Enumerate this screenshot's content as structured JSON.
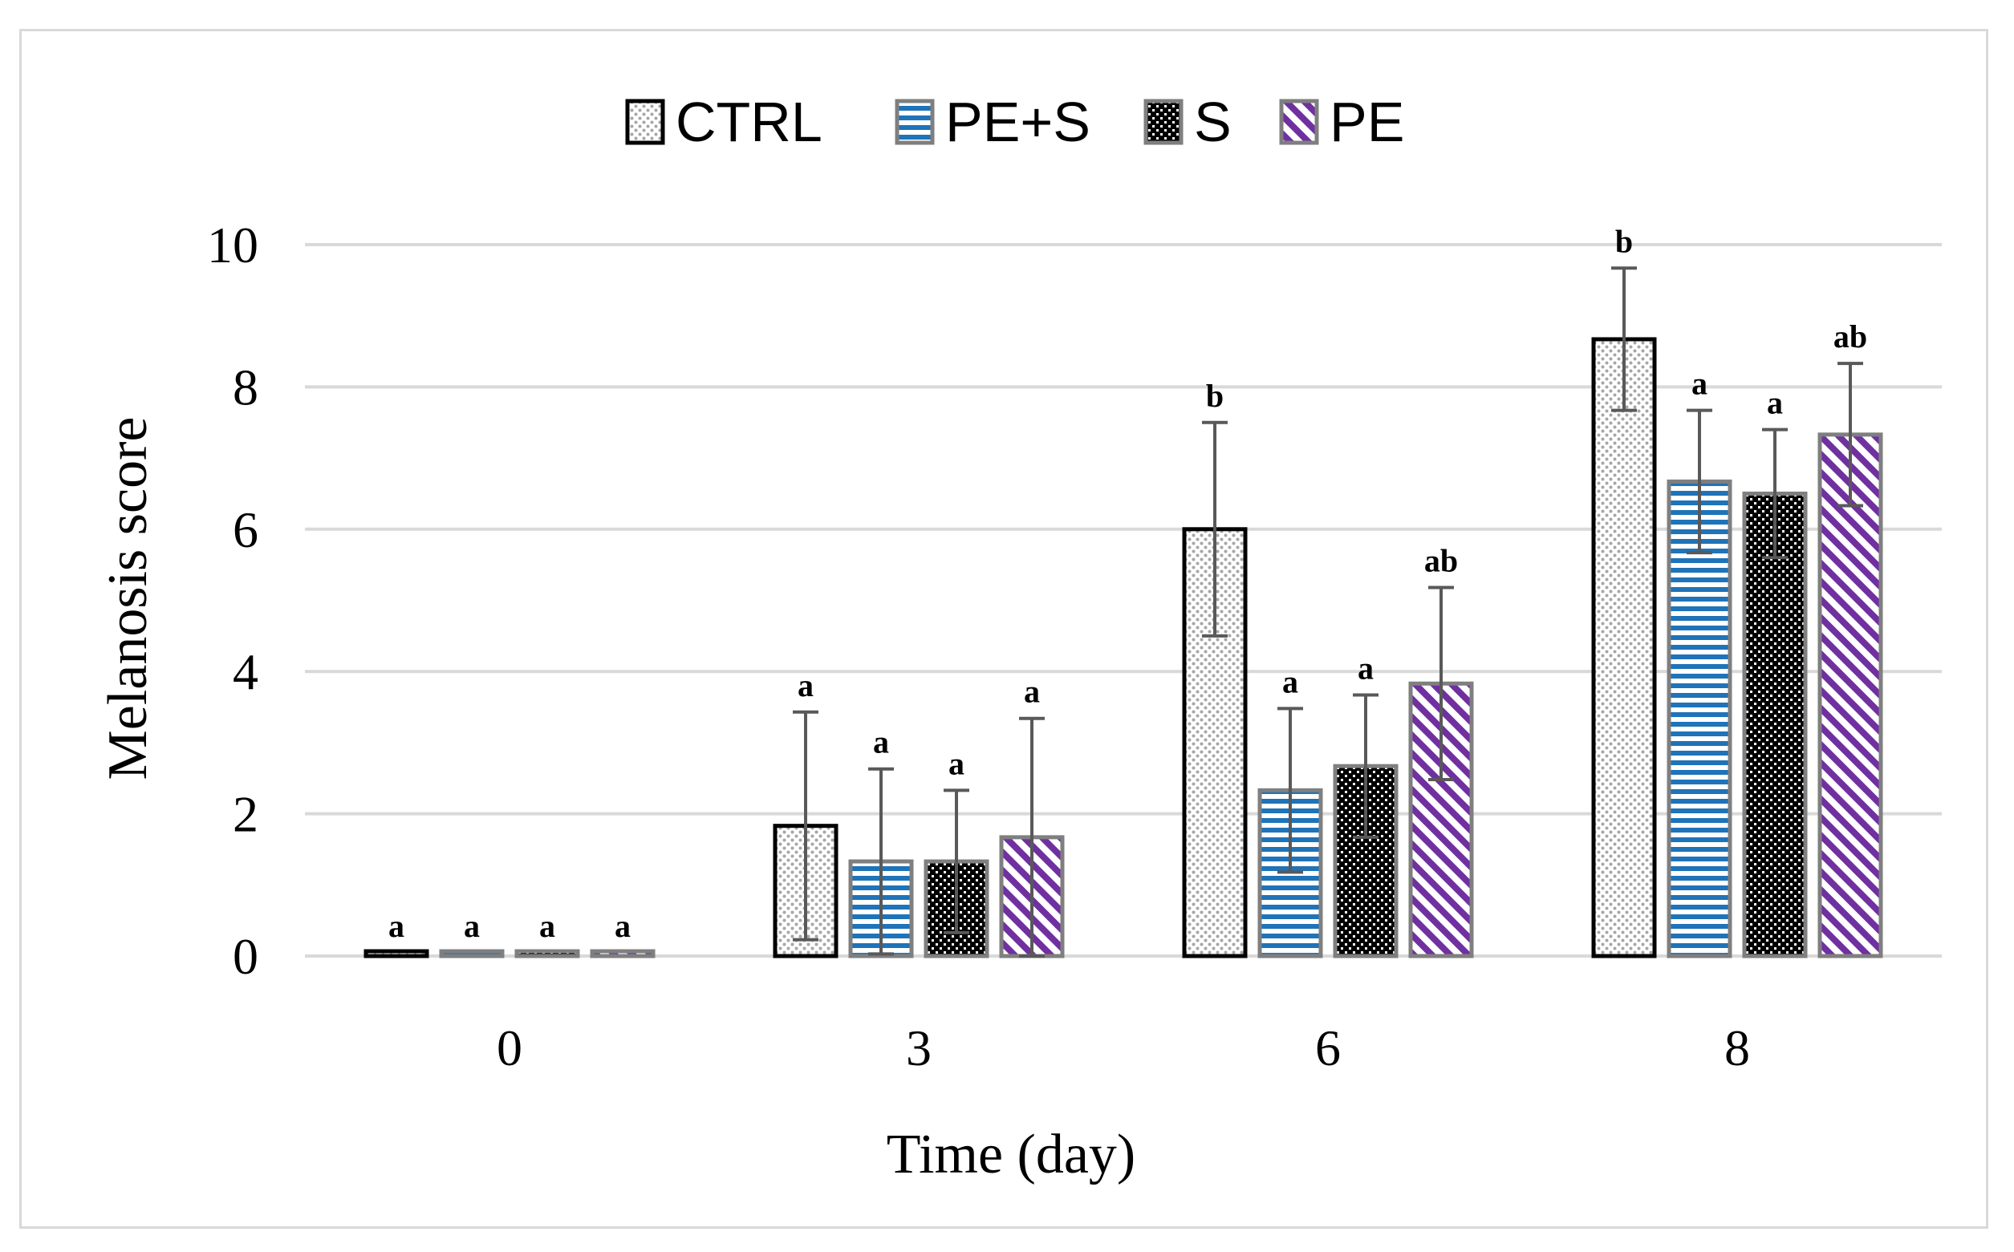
{
  "chart_data": {
    "type": "bar",
    "title": "",
    "xlabel": "Time (day)",
    "ylabel": "Melanosis score",
    "categories": [
      "0",
      "3",
      "6",
      "8"
    ],
    "ylim": [
      0,
      10
    ],
    "yticks": [
      "0",
      "2",
      "4",
      "6",
      "8",
      "10"
    ],
    "grid": true,
    "legend_position": "top",
    "series": [
      {
        "name": "CTRL",
        "values": [
          0,
          1.83,
          6.0,
          8.67
        ],
        "errors": [
          0,
          1.6,
          1.5,
          1.0
        ],
        "significance": [
          "a",
          "a",
          "b",
          "b"
        ],
        "pattern": "dots",
        "color": "#a6a6a6",
        "border": "#000000"
      },
      {
        "name": "PE+S",
        "values": [
          0,
          1.33,
          2.33,
          6.67
        ],
        "errors": [
          0,
          1.3,
          1.15,
          1.0
        ],
        "significance": [
          "a",
          "a",
          "a",
          "a"
        ],
        "pattern": "horizontal",
        "color": "#1f73b8",
        "border": "#7f7f7f"
      },
      {
        "name": "S",
        "values": [
          0,
          1.33,
          2.67,
          6.5
        ],
        "errors": [
          0,
          1.0,
          1.0,
          0.9
        ],
        "significance": [
          "a",
          "a",
          "a",
          "a"
        ],
        "pattern": "checker",
        "color": "#000000",
        "border": "#7f7f7f"
      },
      {
        "name": "PE",
        "values": [
          0,
          1.67,
          3.83,
          7.33
        ],
        "errors": [
          0,
          1.67,
          1.35,
          1.0
        ],
        "significance": [
          "a",
          "a",
          "ab",
          "ab"
        ],
        "pattern": "diagonal",
        "color": "#7030a0",
        "border": "#7f7f7f"
      }
    ]
  }
}
